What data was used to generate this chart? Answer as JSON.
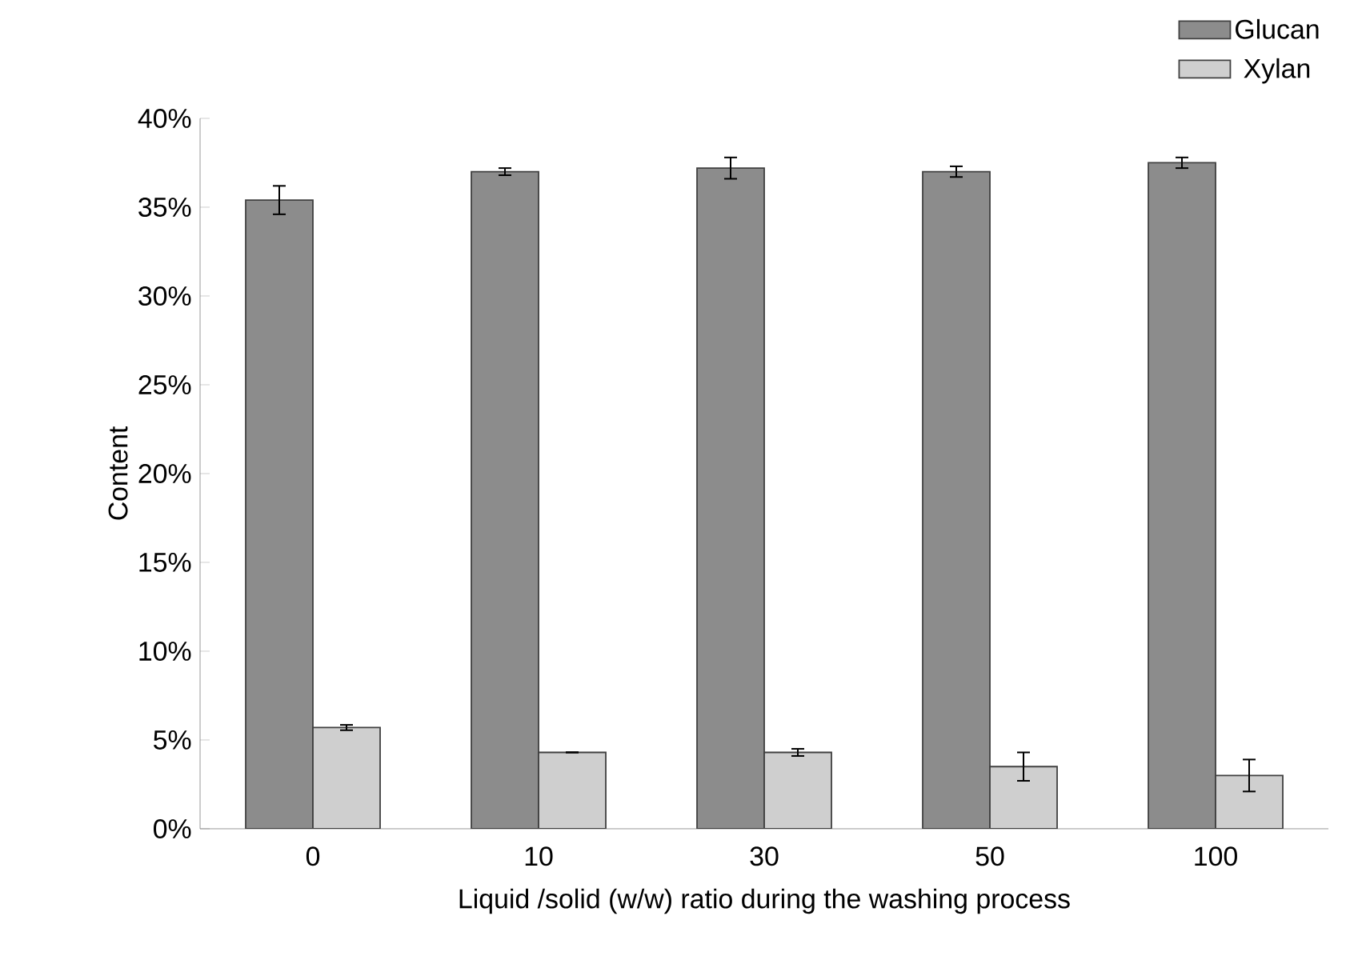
{
  "chart_data": {
    "type": "bar",
    "xlabel": "Liquid /solid (w/w)  ratio during the washing process",
    "ylabel": "Content",
    "categories": [
      "0",
      "10",
      "30",
      "50",
      "100"
    ],
    "series": [
      {
        "name": "Glucan",
        "color": "#8c8c8c",
        "values": [
          35.4,
          37.0,
          37.2,
          37.0,
          37.5
        ],
        "errors": [
          0.8,
          0.2,
          0.6,
          0.3,
          0.3
        ]
      },
      {
        "name": "Xylan",
        "color": "#cfcfcf",
        "values": [
          5.7,
          4.3,
          4.3,
          3.5,
          3.0
        ],
        "errors": [
          0.15,
          0,
          0.2,
          0.8,
          0.9
        ]
      }
    ],
    "ylim": [
      0,
      40
    ],
    "yticks": [
      {
        "value": 0,
        "label": "0%"
      },
      {
        "value": 5,
        "label": "5%"
      },
      {
        "value": 10,
        "label": "10%"
      },
      {
        "value": 15,
        "label": "15%"
      },
      {
        "value": 20,
        "label": "20%"
      },
      {
        "value": 25,
        "label": "25%"
      },
      {
        "value": 30,
        "label": "30%"
      },
      {
        "value": 35,
        "label": "35%"
      },
      {
        "value": 40,
        "label": "40%"
      }
    ],
    "legend": "top right"
  }
}
